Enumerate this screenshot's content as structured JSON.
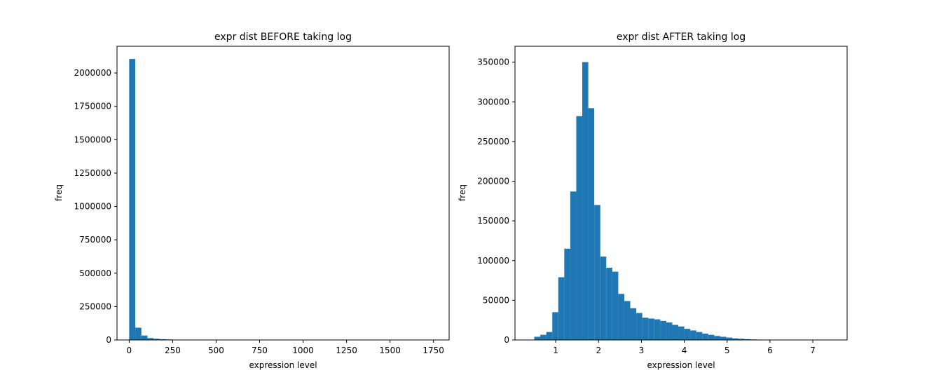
{
  "chart_data": [
    {
      "type": "bar",
      "title": "expr dist BEFORE taking log",
      "xlabel": "expression level",
      "ylabel": "freq",
      "xlim": [
        -70,
        1840
      ],
      "ylim": [
        0,
        2200000
      ],
      "xticks": [
        0,
        250,
        500,
        750,
        1000,
        1250,
        1500,
        1750
      ],
      "yticks": [
        0,
        250000,
        500000,
        750000,
        1000000,
        1250000,
        1500000,
        1750000,
        2000000
      ],
      "bar_color": "#1f77b4",
      "bin_width": 35,
      "bins_start": [
        0,
        35,
        70,
        105,
        140,
        175,
        210,
        245,
        280,
        315
      ],
      "values": [
        2105000,
        92000,
        33000,
        14000,
        9000,
        6000,
        4000,
        2500,
        1500,
        1000
      ]
    },
    {
      "type": "bar",
      "title": "expr dist AFTER taking log",
      "xlabel": "expression level",
      "ylabel": "freq",
      "xlim": [
        0.05,
        7.8
      ],
      "ylim": [
        0,
        370000
      ],
      "xticks": [
        1,
        2,
        3,
        4,
        5,
        6,
        7
      ],
      "yticks": [
        0,
        50000,
        100000,
        150000,
        200000,
        250000,
        300000,
        350000
      ],
      "bar_color": "#1f77b4",
      "bin_width": 0.14,
      "bins_start": [
        0.5,
        0.64,
        0.78,
        0.92,
        1.06,
        1.2,
        1.34,
        1.48,
        1.62,
        1.76,
        1.9,
        2.04,
        2.18,
        2.32,
        2.46,
        2.6,
        2.74,
        2.88,
        3.02,
        3.16,
        3.3,
        3.44,
        3.58,
        3.72,
        3.86,
        4.0,
        4.14,
        4.28,
        4.42,
        4.56,
        4.7,
        4.84,
        4.98,
        5.12,
        5.26,
        5.4,
        5.54,
        5.68,
        5.82,
        5.96,
        6.1
      ],
      "values": [
        4000,
        6500,
        10000,
        35000,
        79000,
        115000,
        187000,
        282000,
        350000,
        292000,
        170000,
        105000,
        91000,
        86000,
        58000,
        49000,
        40000,
        34000,
        28000,
        27000,
        26000,
        24000,
        22000,
        19000,
        17000,
        14000,
        12000,
        10000,
        8000,
        6500,
        5000,
        4000,
        3000,
        2000,
        1500,
        1000,
        700,
        500,
        300,
        200,
        100
      ]
    }
  ]
}
